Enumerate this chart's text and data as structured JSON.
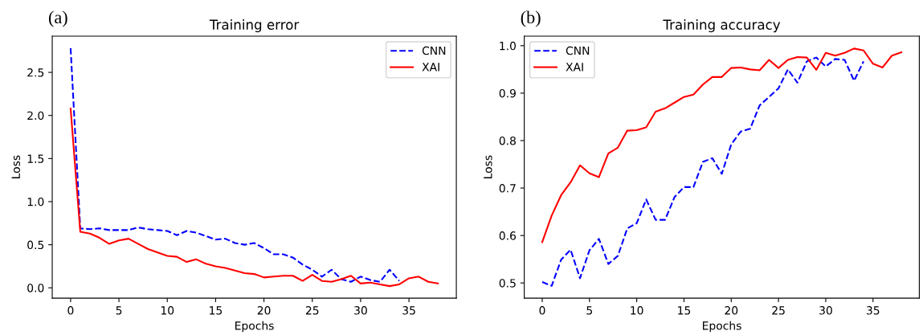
{
  "chart_data": [
    {
      "type": "line",
      "title": "Training error",
      "xlabel": "Epochs",
      "ylabel": "Loss",
      "annotations": [
        "(a)"
      ],
      "legend": "top right",
      "grid": false,
      "xlim": [
        -1.9,
        39.9
      ],
      "ylim": [
        -0.12,
        2.92
      ],
      "xticks": [
        0,
        5,
        10,
        15,
        20,
        25,
        30,
        35
      ],
      "yticks": [
        {
          "value": 0,
          "label": "0.0"
        },
        0.5,
        {
          "value": 1,
          "label": "1.0"
        },
        1.5,
        {
          "value": 2,
          "label": "2.0"
        },
        2.5
      ],
      "series": [
        {
          "name": "CNN",
          "color": "#0000ff",
          "line_style": "dashed",
          "x": [
            0,
            1,
            2,
            3,
            4,
            5,
            6,
            7,
            8,
            9,
            10,
            11,
            12,
            13,
            14,
            15,
            16,
            17,
            18,
            19,
            20,
            21,
            22,
            23,
            24,
            25,
            26,
            27,
            28,
            29,
            30,
            31,
            32,
            33,
            34
          ],
          "values": [
            2.78,
            0.69,
            0.68,
            0.69,
            0.67,
            0.67,
            0.67,
            0.7,
            0.68,
            0.67,
            0.66,
            0.61,
            0.66,
            0.64,
            0.6,
            0.56,
            0.57,
            0.52,
            0.5,
            0.52,
            0.46,
            0.39,
            0.39,
            0.35,
            0.27,
            0.21,
            0.13,
            0.21,
            0.1,
            0.07,
            0.13,
            0.09,
            0.07,
            0.21,
            0.08
          ]
        },
        {
          "name": "XAI",
          "color": "#ff0000",
          "line_style": "solid",
          "x": [
            0,
            1,
            2,
            3,
            4,
            5,
            6,
            7,
            8,
            9,
            10,
            11,
            12,
            13,
            14,
            15,
            16,
            17,
            18,
            19,
            20,
            21,
            22,
            23,
            24,
            25,
            26,
            27,
            28,
            29,
            30,
            31,
            32,
            33,
            34,
            35,
            36,
            37,
            38
          ],
          "values": [
            2.08,
            0.65,
            0.63,
            0.58,
            0.51,
            0.55,
            0.57,
            0.51,
            0.45,
            0.41,
            0.37,
            0.36,
            0.3,
            0.33,
            0.28,
            0.25,
            0.23,
            0.2,
            0.17,
            0.16,
            0.12,
            0.13,
            0.14,
            0.14,
            0.08,
            0.15,
            0.08,
            0.07,
            0.1,
            0.14,
            0.05,
            0.06,
            0.04,
            0.02,
            0.04,
            0.11,
            0.13,
            0.07,
            0.05
          ]
        }
      ]
    },
    {
      "type": "line",
      "title": "Training accuracy",
      "xlabel": "Epochs",
      "ylabel": "Loss",
      "annotations": [
        "(b)"
      ],
      "legend": "top left",
      "grid": false,
      "xlim": [
        -1.9,
        39.9
      ],
      "ylim": [
        0.468,
        1.02
      ],
      "xticks": [
        0,
        5,
        10,
        15,
        20,
        25,
        30,
        35
      ],
      "yticks": [
        0.5,
        0.6,
        0.7,
        0.8,
        0.9,
        {
          "value": 1,
          "label": "1.0"
        }
      ],
      "series": [
        {
          "name": "CNN",
          "color": "#0000ff",
          "line_style": "dashed",
          "x": [
            0,
            1,
            2,
            3,
            4,
            5,
            6,
            7,
            8,
            9,
            10,
            11,
            12,
            13,
            14,
            15,
            16,
            17,
            18,
            19,
            20,
            21,
            22,
            23,
            24,
            25,
            26,
            27,
            28,
            29,
            30,
            31,
            32,
            33,
            34
          ],
          "values": [
            0.502,
            0.494,
            0.549,
            0.57,
            0.51,
            0.569,
            0.593,
            0.54,
            0.557,
            0.615,
            0.626,
            0.676,
            0.633,
            0.633,
            0.681,
            0.702,
            0.702,
            0.755,
            0.763,
            0.73,
            0.792,
            0.819,
            0.825,
            0.874,
            0.892,
            0.91,
            0.95,
            0.922,
            0.967,
            0.975,
            0.956,
            0.972,
            0.97,
            0.926,
            0.967
          ]
        },
        {
          "name": "XAI",
          "color": "#ff0000",
          "line_style": "solid",
          "x": [
            0,
            1,
            2,
            3,
            4,
            5,
            6,
            7,
            8,
            9,
            10,
            11,
            12,
            13,
            14,
            15,
            16,
            17,
            18,
            19,
            20,
            21,
            22,
            23,
            24,
            25,
            26,
            27,
            28,
            29,
            30,
            31,
            32,
            33,
            34,
            35,
            36,
            37,
            38
          ],
          "values": [
            0.586,
            0.642,
            0.685,
            0.712,
            0.748,
            0.731,
            0.723,
            0.773,
            0.785,
            0.821,
            0.822,
            0.828,
            0.861,
            0.868,
            0.88,
            0.892,
            0.897,
            0.918,
            0.934,
            0.934,
            0.953,
            0.954,
            0.95,
            0.948,
            0.97,
            0.953,
            0.97,
            0.976,
            0.975,
            0.949,
            0.985,
            0.979,
            0.985,
            0.994,
            0.99,
            0.962,
            0.954,
            0.979,
            0.986
          ]
        }
      ]
    }
  ]
}
